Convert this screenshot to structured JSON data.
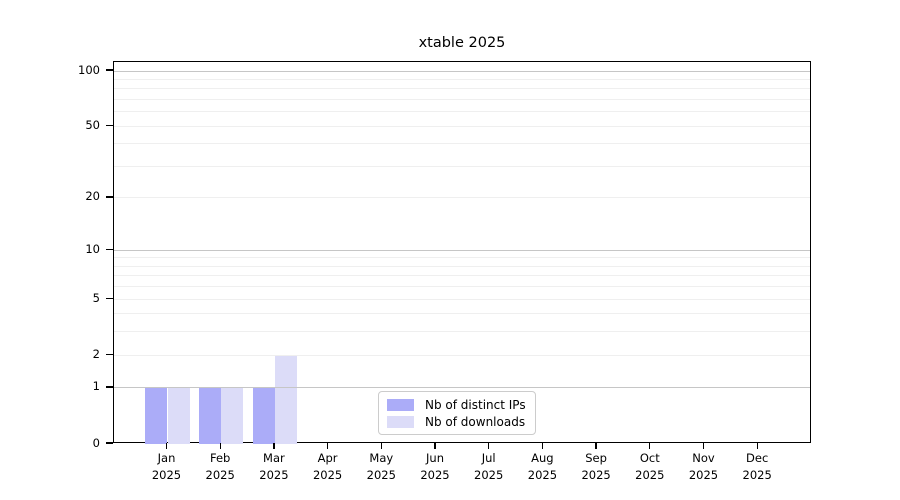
{
  "chart_data": {
    "type": "bar",
    "title": "xtable 2025",
    "categories": [
      {
        "month": "Jan",
        "year": "2025"
      },
      {
        "month": "Feb",
        "year": "2025"
      },
      {
        "month": "Mar",
        "year": "2025"
      },
      {
        "month": "Apr",
        "year": "2025"
      },
      {
        "month": "May",
        "year": "2025"
      },
      {
        "month": "Jun",
        "year": "2025"
      },
      {
        "month": "Jul",
        "year": "2025"
      },
      {
        "month": "Aug",
        "year": "2025"
      },
      {
        "month": "Sep",
        "year": "2025"
      },
      {
        "month": "Oct",
        "year": "2025"
      },
      {
        "month": "Nov",
        "year": "2025"
      },
      {
        "month": "Dec",
        "year": "2025"
      }
    ],
    "series": [
      {
        "name": "Nb of distinct IPs",
        "color": "#abacf8",
        "values": [
          1,
          1,
          1,
          0,
          0,
          0,
          0,
          0,
          0,
          0,
          0,
          0
        ]
      },
      {
        "name": "Nb of downloads",
        "color": "#dcdcf8",
        "values": [
          1,
          1,
          2,
          0,
          0,
          0,
          0,
          0,
          0,
          0,
          0,
          0
        ]
      }
    ],
    "xlabel": "",
    "ylabel": "",
    "yscale": "log1p",
    "ylim": [
      0,
      112
    ],
    "ytick_labels": [
      "0",
      "1",
      "2",
      "5",
      "10",
      "20",
      "50",
      "100"
    ],
    "ytick_values": [
      0,
      1,
      2,
      5,
      10,
      20,
      50,
      100
    ],
    "major_gridline_values": [
      1,
      10,
      100
    ],
    "minor_gridline_values": [
      2,
      3,
      4,
      5,
      6,
      7,
      8,
      9,
      20,
      30,
      40,
      50,
      60,
      70,
      80,
      90
    ],
    "grid": true,
    "legend_position": "bottom-center"
  },
  "colors": {
    "spine": "#000000",
    "major_gridline": "#c6c6c6",
    "minor_gridline": "#efefef",
    "background": "#ffffff",
    "legend_border": "#cccccc",
    "text": "#000000"
  }
}
